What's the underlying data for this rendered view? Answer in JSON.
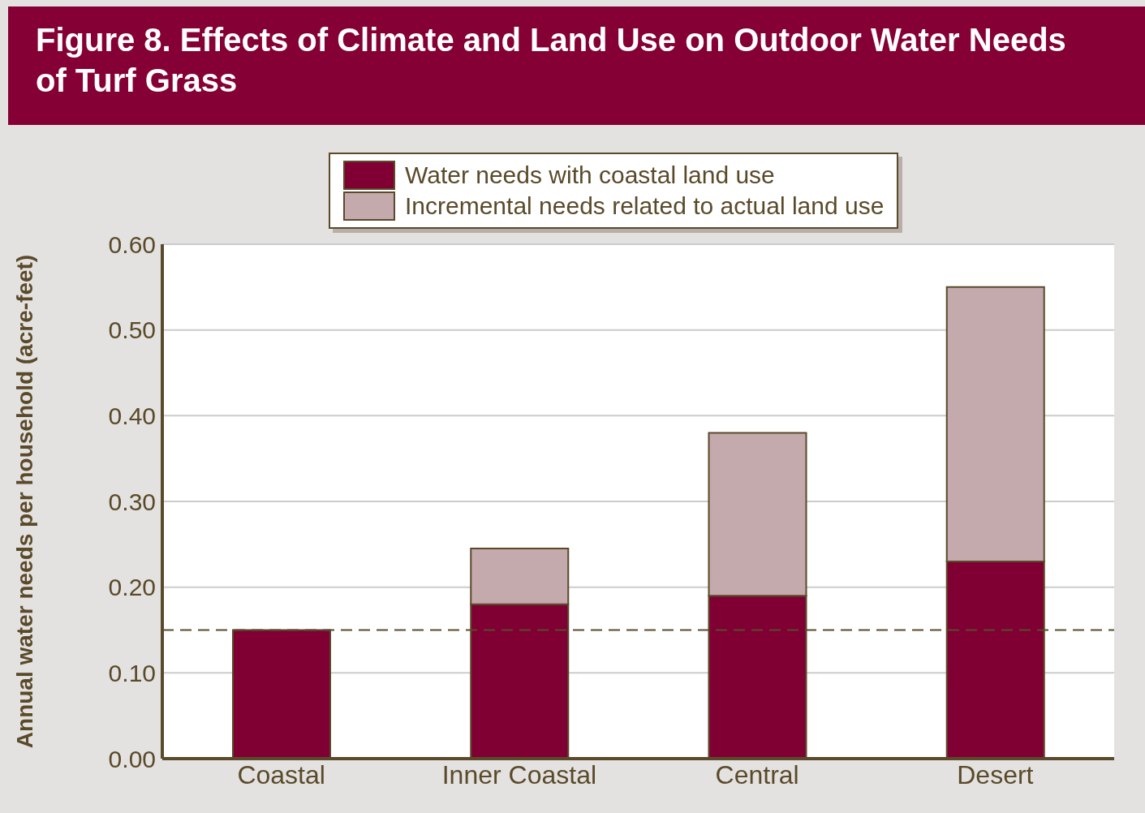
{
  "chart_data": {
    "type": "bar",
    "title": "Figure 8. Effects of Climate and Land Use on Outdoor Water Needs of Turf Grass",
    "ylabel": "Annual water needs per household (acre-feet)",
    "categories": [
      "Coastal",
      "Inner Coastal",
      "Central",
      "Desert"
    ],
    "stacked": true,
    "series": [
      {
        "name": "Water needs with coastal land use",
        "color": "#800033",
        "values": [
          0.15,
          0.18,
          0.19,
          0.23
        ]
      },
      {
        "name": "Incremental needs related to actual land use",
        "color": "#c4a9ad",
        "values": [
          null,
          0.065,
          0.19,
          0.32
        ]
      }
    ],
    "ylim": [
      0,
      0.6
    ],
    "yticks": [
      {
        "value": 0,
        "label": "0.00"
      },
      {
        "value": 0.1,
        "label": "0.10"
      },
      {
        "value": 0.2,
        "label": "0.20"
      },
      {
        "value": 0.3,
        "label": "0.30"
      },
      {
        "value": 0.4,
        "label": "0.40"
      },
      {
        "value": 0.5,
        "label": "0.50"
      },
      {
        "value": 0.6,
        "label": "0.60"
      }
    ],
    "ref_lines": [
      {
        "axis": "y",
        "value": 0.15,
        "color": "#5a4a2a",
        "line_style": "dashed"
      }
    ],
    "grid": "y",
    "legend": "top"
  }
}
